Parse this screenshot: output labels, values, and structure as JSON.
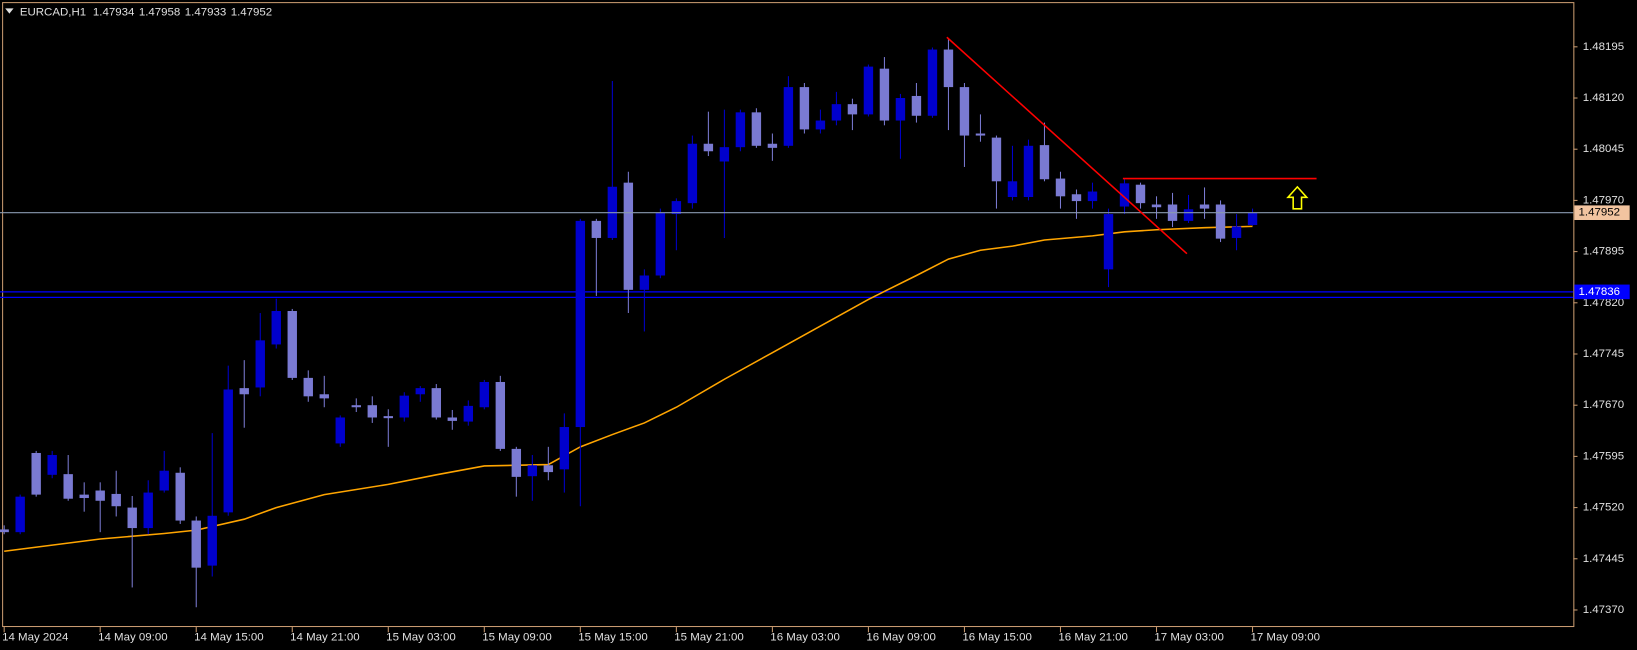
{
  "chart_data": {
    "type": "candlestick",
    "title": "EURCAD,H1",
    "categories": [
      "14 May 2024",
      null,
      null,
      null,
      null,
      null,
      "14 May 09:00",
      null,
      null,
      null,
      null,
      null,
      "14 May 15:00",
      null,
      null,
      null,
      null,
      null,
      "14 May 21:00",
      null,
      null,
      null,
      null,
      null,
      "15 May 03:00",
      null,
      null,
      null,
      null,
      null,
      "15 May 09:00",
      null,
      null,
      null,
      null,
      null,
      "15 May 15:00",
      null,
      null,
      null,
      null,
      null,
      "15 May 21:00",
      null,
      null,
      null,
      null,
      null,
      "16 May 03:00",
      null,
      null,
      null,
      null,
      null,
      "16 May 09:00",
      null,
      null,
      null,
      null,
      null,
      "16 May 15:00",
      null,
      null,
      null,
      null,
      null,
      "16 May 21:00",
      null,
      null,
      null,
      null,
      null,
      "17 May 03:00",
      null,
      null,
      null,
      null,
      null,
      "17 May 09:00"
    ],
    "open": [
      1.47488,
      1.47484,
      1.476,
      1.47568,
      1.47569,
      1.47539,
      1.47545,
      1.4754,
      1.4752,
      1.4749,
      1.47545,
      1.47571,
      1.47501,
      1.47435,
      1.47513,
      1.47695,
      1.47696,
      1.47759,
      1.47808,
      1.4771,
      1.47686,
      1.47614,
      1.4767,
      1.4767,
      1.47654,
      1.47652,
      1.47686,
      1.47695,
      1.47652,
      1.47646,
      1.47667,
      1.47704,
      1.47606,
      1.47566,
      1.47582,
      1.47576,
      1.47638,
      1.4794,
      1.47915,
      1.47996,
      1.47839,
      1.4786,
      1.4795,
      1.47966,
      1.48053,
      1.48027,
      1.48048,
      1.48099,
      1.48053,
      1.4805,
      1.48136,
      1.48074,
      1.48087,
      1.48111,
      1.48096,
      1.48163,
      1.48087,
      1.48123,
      1.48094,
      1.48191,
      1.48136,
      1.48068,
      1.48062,
      1.47975,
      1.47975,
      1.48051,
      1.48002,
      1.47979,
      1.47969,
      1.47869,
      1.47961,
      1.47993,
      1.47964,
      1.47964,
      1.4794,
      1.47964,
      1.47964,
      1.47915,
      1.47934
    ],
    "high": [
      1.47494,
      1.47539,
      1.47603,
      1.47603,
      1.47597,
      1.47557,
      1.47557,
      1.47574,
      1.47537,
      1.4756,
      1.47603,
      1.47579,
      1.47507,
      1.47629,
      1.47728,
      1.47736,
      1.47805,
      1.47826,
      1.47811,
      1.47721,
      1.47713,
      1.47655,
      1.4768,
      1.47683,
      1.47664,
      1.47689,
      1.47698,
      1.47701,
      1.47663,
      1.47677,
      1.47707,
      1.47713,
      1.47609,
      1.47597,
      1.47609,
      1.47658,
      1.47943,
      1.47943,
      1.48145,
      1.48012,
      1.47869,
      1.47958,
      1.47973,
      1.48065,
      1.481,
      1.48103,
      1.48103,
      1.48105,
      1.48068,
      1.48152,
      1.48142,
      1.48103,
      1.48129,
      1.48119,
      1.48169,
      1.4818,
      1.48126,
      1.48142,
      1.48194,
      1.48206,
      1.48142,
      1.48096,
      1.48065,
      1.4805,
      1.48059,
      1.48084,
      1.48012,
      1.47986,
      1.47996,
      1.47958,
      1.48001,
      1.47996,
      1.47976,
      1.47981,
      1.47978,
      1.47989,
      1.4797,
      1.4795,
      1.47958
    ],
    "low": [
      1.47481,
      1.47481,
      1.47536,
      1.47563,
      1.4753,
      1.47514,
      1.47484,
      1.47507,
      1.47403,
      1.47481,
      1.47542,
      1.47496,
      1.47374,
      1.47419,
      1.47508,
      1.47637,
      1.47683,
      1.47753,
      1.47707,
      1.47675,
      1.47667,
      1.47609,
      1.4766,
      1.47644,
      1.47609,
      1.47646,
      1.47675,
      1.47649,
      1.47634,
      1.4764,
      1.47664,
      1.47603,
      1.47536,
      1.4753,
      1.4756,
      1.47542,
      1.47522,
      1.4783,
      1.47912,
      1.47805,
      1.47778,
      1.47856,
      1.47897,
      1.47958,
      1.48035,
      1.47915,
      1.48042,
      1.48047,
      1.48028,
      1.48047,
      1.48068,
      1.48068,
      1.4808,
      1.48073,
      1.48093,
      1.4808,
      1.48031,
      1.48084,
      1.48091,
      1.48073,
      1.48019,
      1.48056,
      1.47958,
      1.4797,
      1.4797,
      1.47998,
      1.47958,
      1.47943,
      1.47958,
      1.47843,
      1.4795,
      1.47958,
      1.47943,
      1.47931,
      1.47937,
      1.47943,
      1.47909,
      1.47897,
      1.47933
    ],
    "close": [
      1.47484,
      1.47536,
      1.47539,
      1.47597,
      1.47533,
      1.47534,
      1.4753,
      1.47522,
      1.4749,
      1.47542,
      1.47574,
      1.47501,
      1.47432,
      1.47508,
      1.47693,
      1.47686,
      1.47765,
      1.47808,
      1.4771,
      1.47683,
      1.4768,
      1.47652,
      1.47667,
      1.47652,
      1.47651,
      1.47684,
      1.47695,
      1.47652,
      1.47647,
      1.47669,
      1.47704,
      1.47606,
      1.47565,
      1.47582,
      1.47572,
      1.47638,
      1.4794,
      1.47915,
      1.4799,
      1.47839,
      1.4786,
      1.47952,
      1.47969,
      1.48053,
      1.48042,
      1.48048,
      1.48099,
      1.4805,
      1.48047,
      1.48136,
      1.48074,
      1.48087,
      1.48111,
      1.48096,
      1.48166,
      1.48087,
      1.4812,
      1.48094,
      1.48191,
      1.48136,
      1.48065,
      1.48065,
      1.47998,
      1.47998,
      1.4805,
      1.48001,
      1.47976,
      1.47969,
      1.47983,
      1.4795,
      1.47995,
      1.47966,
      1.4796,
      1.4794,
      1.47957,
      1.47958,
      1.47914,
      1.47932,
      1.47952
    ],
    "up_color": "#0000cd",
    "down_color": "#7a7ad2",
    "ma": {
      "color": "#ffa500",
      "x": [
        0,
        6,
        10,
        12,
        15,
        17,
        20,
        24,
        27,
        30,
        34,
        36,
        38,
        40,
        42,
        45,
        48,
        51,
        54,
        57,
        59,
        61,
        63,
        65,
        68,
        70,
        72,
        75,
        78
      ],
      "values": [
        1.47456,
        1.47474,
        1.47482,
        1.47487,
        1.47503,
        1.4752,
        1.47539,
        1.47554,
        1.47568,
        1.47581,
        1.47583,
        1.47609,
        1.47627,
        1.47644,
        1.47667,
        1.47708,
        1.47747,
        1.47786,
        1.47825,
        1.4786,
        1.47884,
        1.47897,
        1.47903,
        1.47912,
        1.47918,
        1.47924,
        1.47927,
        1.4793,
        1.47932
      ]
    },
    "trendline": {
      "color": "#ff0000",
      "x": [
        58.9,
        73.9
      ],
      "y": [
        1.48209,
        1.47892
      ]
    },
    "resistance": {
      "color": "#ff0000",
      "x": [
        69.9,
        82
      ],
      "y": [
        1.48002,
        1.48002
      ]
    },
    "arrow": {
      "color": "#ffff00",
      "x": 80.8,
      "y": 1.47973
    },
    "hlines": [
      {
        "value": 1.47836,
        "color": "#0000ff"
      },
      {
        "value": 1.47828,
        "color": "#0000ff"
      }
    ],
    "ylim": [
      1.47345,
      1.48259
    ],
    "yticks": [
      1.48195,
      {
        "value": 1.4812,
        "label": "1.48120"
      },
      1.48045,
      {
        "value": 1.4797,
        "label": "1.47970"
      },
      1.47895,
      {
        "value": 1.4782,
        "label": "1.47820"
      },
      1.47745,
      {
        "value": 1.4767,
        "label": "1.47670"
      },
      1.47595,
      {
        "value": 1.4752,
        "label": "1.47520"
      },
      1.47445,
      {
        "value": 1.4737,
        "label": "1.47370"
      }
    ]
  }
}
